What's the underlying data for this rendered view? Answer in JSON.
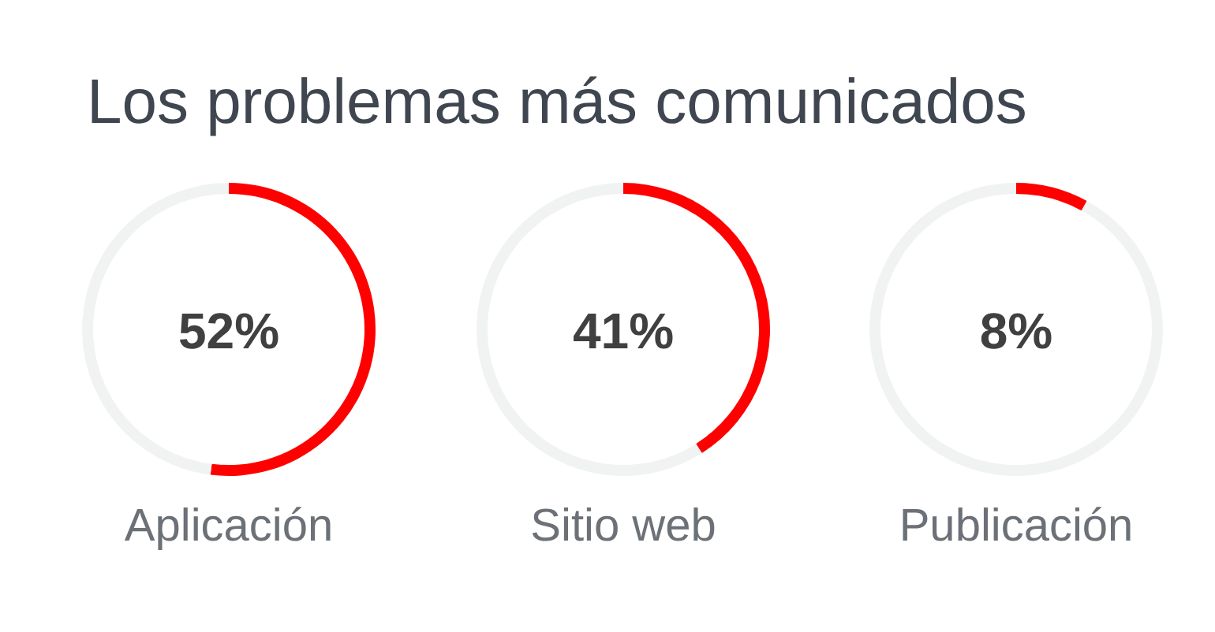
{
  "chart_data": [
    {
      "type": "other",
      "title": "Los problemas más comunicados"
    },
    {
      "type": "donut",
      "title": "Aplicación",
      "categories": [
        null,
        null
      ],
      "values": [
        52,
        48
      ],
      "colors": [
        "#fe0000",
        "#f1f3f3"
      ],
      "annotations": [
        "52%"
      ]
    },
    {
      "type": "donut",
      "title": "Sitio web",
      "categories": [
        null,
        null
      ],
      "values": [
        41,
        59
      ],
      "colors": [
        "#fe0000",
        "#f1f3f3"
      ],
      "annotations": [
        "41%"
      ]
    },
    {
      "type": "donut",
      "title": "Publicación",
      "categories": [
        null,
        null
      ],
      "values": [
        8,
        92
      ],
      "colors": [
        "#fe0000",
        "#f1f3f3"
      ],
      "annotations": [
        "8%"
      ]
    }
  ]
}
